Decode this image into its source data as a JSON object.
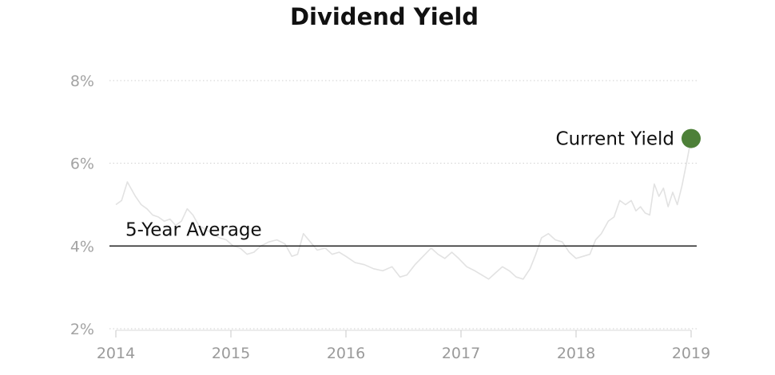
{
  "chart_data": {
    "type": "line",
    "title": "Dividend Yield",
    "xlabel": "",
    "ylabel": "",
    "xlim": [
      2014.0,
      2019.05
    ],
    "ylim": [
      2,
      8
    ],
    "yticks": [
      8,
      6,
      4,
      2
    ],
    "ytick_labels": [
      "8%",
      "6%",
      "4%",
      "2%"
    ],
    "xticks": [
      2014,
      2015,
      2016,
      2017,
      2018,
      2019
    ],
    "xtick_labels": [
      "2014",
      "2015",
      "2016",
      "2017",
      "2018",
      "2019"
    ],
    "grid": true,
    "series": [
      {
        "color": "#e2e2e2",
        "x": [
          2014.0,
          2014.05,
          2014.1,
          2014.13,
          2014.17,
          2014.22,
          2014.27,
          2014.32,
          2014.37,
          2014.42,
          2014.47,
          2014.52,
          2014.57,
          2014.62,
          2014.67,
          2014.72,
          2014.78,
          2014.84,
          2014.9,
          2014.96,
          2015.02,
          2015.08,
          2015.14,
          2015.2,
          2015.26,
          2015.33,
          2015.4,
          2015.47,
          2015.53,
          2015.58,
          2015.63,
          2015.69,
          2015.75,
          2015.82,
          2015.88,
          2015.94,
          2016.0,
          2016.08,
          2016.16,
          2016.24,
          2016.32,
          2016.4,
          2016.47,
          2016.53,
          2016.6,
          2016.67,
          2016.74,
          2016.8,
          2016.86,
          2016.92,
          2016.98,
          2017.05,
          2017.12,
          2017.18,
          2017.24,
          2017.3,
          2017.36,
          2017.42,
          2017.48,
          2017.54,
          2017.6,
          2017.65,
          2017.7,
          2017.76,
          2017.82,
          2017.88,
          2017.94,
          2018.0,
          2018.06,
          2018.12,
          2018.17,
          2018.22,
          2018.28,
          2018.33,
          2018.38,
          2018.43,
          2018.48,
          2018.52,
          2018.56,
          2018.6,
          2018.64,
          2018.68,
          2018.72,
          2018.76,
          2018.8,
          2018.84,
          2018.88,
          2018.92,
          2018.96,
          2019.0
        ],
        "values": [
          5.0,
          5.1,
          5.55,
          5.4,
          5.2,
          5.0,
          4.9,
          4.75,
          4.7,
          4.6,
          4.65,
          4.5,
          4.6,
          4.9,
          4.75,
          4.5,
          4.4,
          4.3,
          4.2,
          4.15,
          4.0,
          3.95,
          3.8,
          3.85,
          4.0,
          4.1,
          4.15,
          4.05,
          3.75,
          3.8,
          4.3,
          4.1,
          3.9,
          3.95,
          3.8,
          3.85,
          3.75,
          3.6,
          3.55,
          3.45,
          3.4,
          3.5,
          3.25,
          3.3,
          3.55,
          3.75,
          3.95,
          3.8,
          3.7,
          3.85,
          3.7,
          3.5,
          3.4,
          3.3,
          3.2,
          3.35,
          3.5,
          3.4,
          3.25,
          3.2,
          3.45,
          3.8,
          4.2,
          4.3,
          4.15,
          4.1,
          3.85,
          3.7,
          3.75,
          3.8,
          4.15,
          4.3,
          4.6,
          4.7,
          5.1,
          5.0,
          5.1,
          4.85,
          4.95,
          4.8,
          4.75,
          5.5,
          5.2,
          5.4,
          4.95,
          5.3,
          5.0,
          5.45,
          6.0,
          6.6
        ]
      }
    ],
    "reference_line": {
      "value": 4.0,
      "label": "5-Year Average"
    },
    "highlight_point": {
      "x": 2019.0,
      "value": 6.6,
      "label": "Current Yield",
      "color": "#4d8038"
    }
  }
}
